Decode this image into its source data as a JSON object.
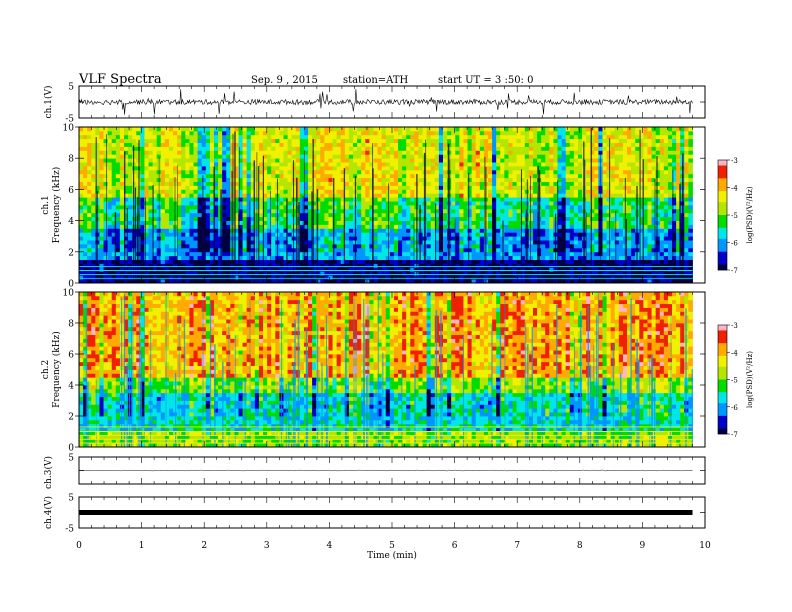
{
  "header": {
    "title": "VLF Spectra",
    "date": "Sep. 9 , 2015",
    "station": "station=ATH",
    "start": "start UT = 3 :50: 0"
  },
  "chart_data": [
    {
      "type": "line",
      "panel": "ch1-waveform",
      "ylabel": "ch.1(V)",
      "ylim": [
        -5,
        5
      ],
      "yticks": [
        5,
        0,
        -5
      ],
      "ytick_labels": [
        "5",
        "",
        "-5"
      ],
      "xlim": [
        0,
        10
      ],
      "data_extent_min": 9.8,
      "series": [
        {
          "values_summary": "noisy waveform centred near 0 V with impulsive spikes up to about ±4 V"
        }
      ]
    },
    {
      "type": "heatmap",
      "panel": "ch1-spectrogram",
      "ylabel": [
        "ch.1",
        "Frequency (kHz)"
      ],
      "ylim": [
        0,
        10
      ],
      "yticks": [
        0,
        2,
        4,
        6,
        8,
        10
      ],
      "xlim": [
        0,
        10
      ],
      "data_extent_min": 9.8,
      "colorbar": {
        "label": "log(PSD)(V²/Hz)",
        "range": [
          -7,
          -3
        ],
        "ticks": [
          "-3",
          "-4",
          "-5",
          "-6",
          "-7"
        ]
      },
      "description_values": {
        "below_1.5kHz": -6.8,
        "1.5_to_3.5kHz": -6.0,
        "4_to_5kHz": -5.3,
        "above_6kHz": -4.5
      }
    },
    {
      "type": "heatmap",
      "panel": "ch2-spectrogram",
      "ylabel": [
        "ch.2",
        "Frequency (kHz)"
      ],
      "ylim": [
        0,
        10
      ],
      "yticks": [
        0,
        2,
        4,
        6,
        8,
        10
      ],
      "xlim": [
        0,
        10
      ],
      "data_extent_min": 9.8,
      "colorbar": {
        "label": "log(PSD)(V²/Hz)",
        "range": [
          -7,
          -3
        ],
        "ticks": [
          "-3",
          "-4",
          "-5",
          "-6",
          "-7"
        ]
      },
      "description_values": {
        "below_1kHz": -4.8,
        "1_to_3.5kHz": -5.6,
        "3.5_to_4.5kHz": -4.9,
        "above_5kHz": -3.9
      }
    },
    {
      "type": "line",
      "panel": "ch3-waveform",
      "ylabel": "ch.3(V)",
      "ylim": [
        -5,
        5
      ],
      "yticks": [
        5,
        0,
        -5
      ],
      "ytick_labels": [
        "5",
        "",
        ""
      ],
      "xlim": [
        0,
        10
      ],
      "data_extent_min": 9.8,
      "series": [
        {
          "values_summary": "near-flat trace at about 0 V with small noise"
        }
      ]
    },
    {
      "type": "line",
      "panel": "ch4-waveform",
      "ylabel": "ch.4(V)",
      "ylim": [
        -5,
        5
      ],
      "yticks": [
        5,
        0,
        -5
      ],
      "ytick_labels": [
        "5",
        "",
        "-5"
      ],
      "xlim": [
        0,
        10
      ],
      "data_extent_min": 9.8,
      "series": [
        {
          "values_summary": "thick flat trace at 0 V"
        }
      ]
    }
  ],
  "xaxis": {
    "label": "Time (min)",
    "ticks": [
      "0",
      "1",
      "2",
      "3",
      "4",
      "5",
      "6",
      "7",
      "8",
      "9",
      "10"
    ]
  },
  "colors": {
    "spec_ramp": [
      "#000040",
      "#0000c8",
      "#0096ff",
      "#00e6e6",
      "#00dc00",
      "#b4e600",
      "#f0f000",
      "#ffaa00",
      "#f02000",
      "#ffb4c8"
    ]
  }
}
